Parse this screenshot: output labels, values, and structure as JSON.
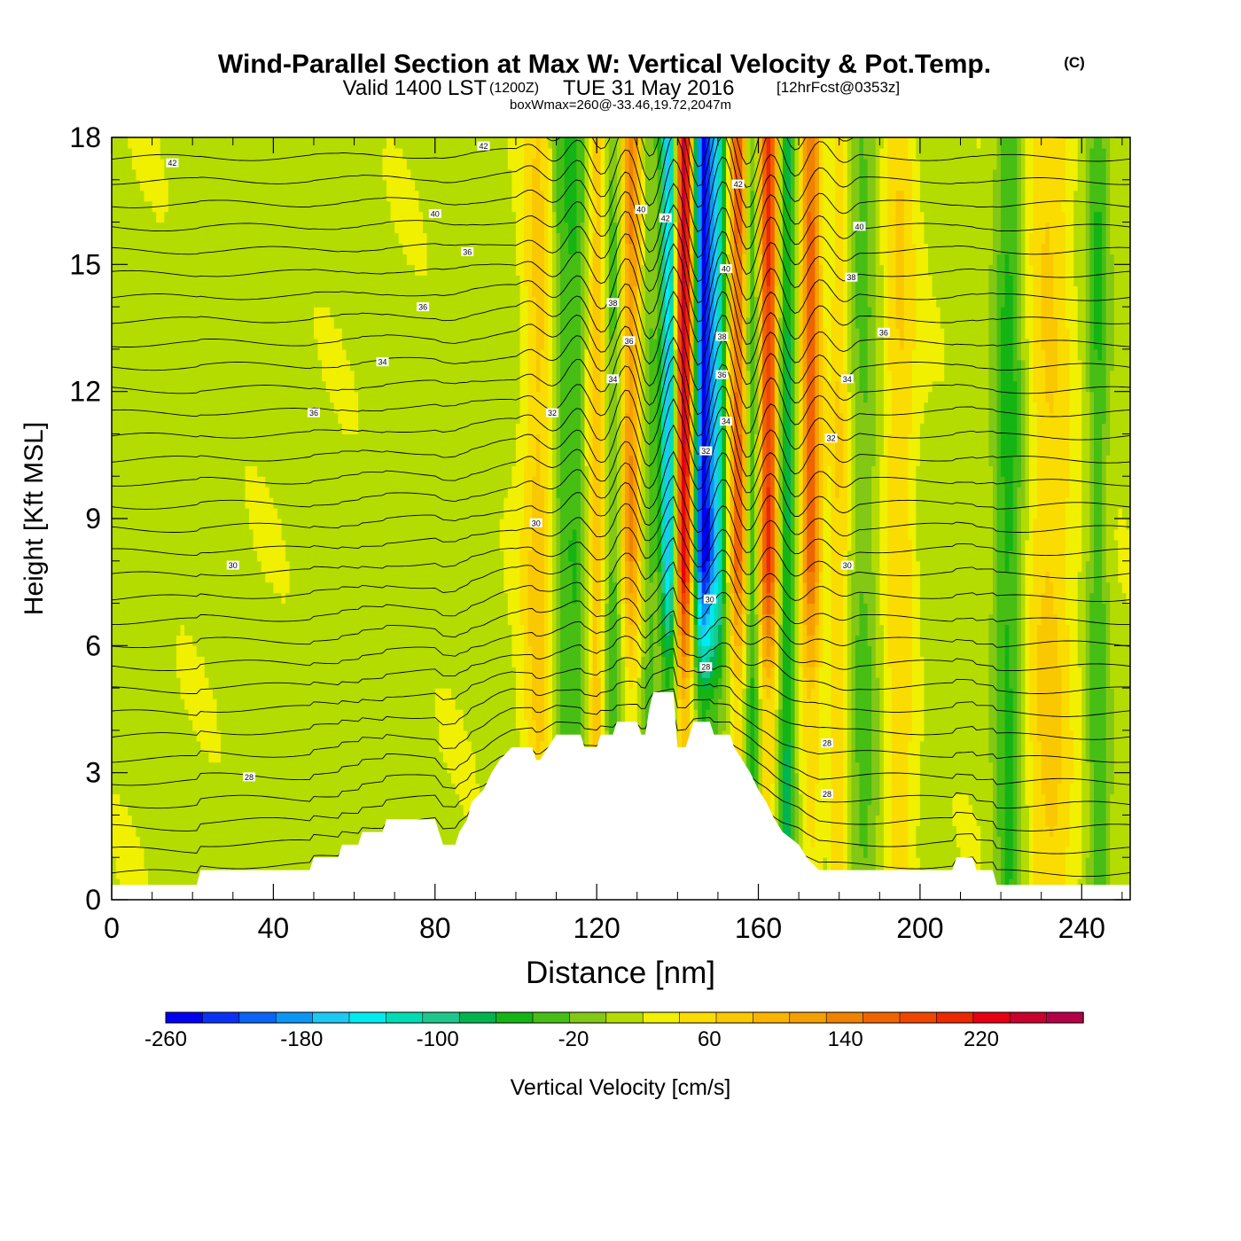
{
  "chart_data": {
    "type": "heatmap",
    "title": "Wind-Parallel Section at Max W: Vertical Velocity & Pot.Temp.",
    "title_mark": "(C)",
    "subtitle": {
      "valid_prefix": "Valid 1400 LST",
      "utc": "(1200Z)",
      "date": "TUE 31 May 2016",
      "forecast": "[12hrFcst@0353z]"
    },
    "box_info": "boxWmax=260@-33.46,19.72,2047m",
    "xlabel": "Distance [nm]",
    "ylabel": "Height [Kft MSL]",
    "xlim": [
      0,
      252
    ],
    "ylim": [
      0,
      18
    ],
    "xticks": [
      0,
      40,
      80,
      120,
      160,
      200,
      240
    ],
    "yticks": [
      0,
      3,
      6,
      9,
      12,
      15,
      18
    ],
    "colorbar": {
      "label": "Vertical Velocity [cm/s]",
      "min": -260,
      "max": 280,
      "step": 20,
      "ticks": [
        -260,
        -180,
        -100,
        -20,
        60,
        140,
        220
      ],
      "colors": [
        "#0000f0",
        "#0a32f5",
        "#0a64f5",
        "#0a96f5",
        "#1ec8f5",
        "#00eaf0",
        "#00dcb4",
        "#1ec88c",
        "#00b450",
        "#14b414",
        "#46be14",
        "#82c814",
        "#b4dc00",
        "#f0f000",
        "#fadc00",
        "#fac800",
        "#fab400",
        "#f5a000",
        "#f08200",
        "#f06400",
        "#f04600",
        "#eb2800",
        "#e60014",
        "#c8002d",
        "#b40046"
      ]
    },
    "terrain_profile_kft": [
      [
        0,
        0.35
      ],
      [
        21,
        0.35
      ],
      [
        22,
        0.7
      ],
      [
        49,
        0.7
      ],
      [
        50,
        1.0
      ],
      [
        56,
        1.0
      ],
      [
        57,
        1.3
      ],
      [
        61,
        1.3
      ],
      [
        62,
        1.6
      ],
      [
        67,
        1.6
      ],
      [
        68,
        1.9
      ],
      [
        80,
        1.9
      ],
      [
        81,
        1.6
      ],
      [
        82,
        1.3
      ],
      [
        85,
        1.3
      ],
      [
        86,
        1.6
      ],
      [
        88,
        1.9
      ],
      [
        89,
        2.3
      ],
      [
        92,
        2.6
      ],
      [
        94,
        3.0
      ],
      [
        96,
        3.3
      ],
      [
        99,
        3.6
      ],
      [
        104,
        3.6
      ],
      [
        105,
        3.3
      ],
      [
        106,
        3.3
      ],
      [
        108,
        3.6
      ],
      [
        110,
        3.9
      ],
      [
        116,
        3.9
      ],
      [
        117,
        3.6
      ],
      [
        120,
        3.6
      ],
      [
        121,
        3.9
      ],
      [
        124,
        3.9
      ],
      [
        125,
        4.2
      ],
      [
        130,
        4.2
      ],
      [
        131,
        3.9
      ],
      [
        132,
        3.9
      ],
      [
        133,
        4.5
      ],
      [
        134,
        4.9
      ],
      [
        139,
        4.9
      ],
      [
        140,
        3.6
      ],
      [
        142,
        3.6
      ],
      [
        143,
        3.9
      ],
      [
        144,
        4.2
      ],
      [
        148,
        4.2
      ],
      [
        149,
        3.9
      ],
      [
        153,
        3.9
      ],
      [
        154,
        3.6
      ],
      [
        156,
        3.3
      ],
      [
        158,
        3.0
      ],
      [
        160,
        2.6
      ],
      [
        162,
        2.3
      ],
      [
        164,
        1.9
      ],
      [
        166,
        1.6
      ],
      [
        170,
        1.3
      ],
      [
        172,
        1.0
      ],
      [
        175,
        0.7
      ],
      [
        208,
        0.7
      ],
      [
        209,
        1.0
      ],
      [
        213,
        1.0
      ],
      [
        214,
        0.7
      ],
      [
        218,
        0.7
      ],
      [
        219,
        0.35
      ],
      [
        252,
        0.35
      ]
    ],
    "w_bands": [
      {
        "x": 106,
        "w": 4.5,
        "amp": 55
      },
      {
        "x": 111,
        "w": 3.0,
        "amp": -50
      },
      {
        "x": 115,
        "w": 2.5,
        "amp": -40
      },
      {
        "x": 120,
        "w": 2.2,
        "amp": 60
      },
      {
        "x": 124,
        "w": 2.0,
        "amp": -40
      },
      {
        "x": 128.5,
        "w": 2.4,
        "amp": 105
      },
      {
        "x": 133,
        "w": 2.0,
        "amp": -35
      },
      {
        "x": 138,
        "w": 2.2,
        "amp": -180
      },
      {
        "x": 141.5,
        "w": 2.4,
        "amp": 230
      },
      {
        "x": 146.5,
        "w": 2.4,
        "amp": -240
      },
      {
        "x": 150,
        "w": 2.0,
        "amp": -120
      },
      {
        "x": 155,
        "w": 2.2,
        "amp": 140
      },
      {
        "x": 158.5,
        "w": 1.8,
        "amp": -60
      },
      {
        "x": 162.5,
        "w": 2.4,
        "amp": 170
      },
      {
        "x": 167,
        "w": 2.0,
        "amp": -80
      },
      {
        "x": 173,
        "w": 2.5,
        "amp": 140
      },
      {
        "x": 180,
        "w": 2.5,
        "amp": 45
      },
      {
        "x": 186,
        "w": 3.5,
        "amp": -35
      },
      {
        "x": 195,
        "w": 4.0,
        "amp": 45
      },
      {
        "x": 222,
        "w": 3.5,
        "amp": -60
      },
      {
        "x": 232,
        "w": 6.0,
        "amp": 50
      },
      {
        "x": 244,
        "w": 2.5,
        "amp": -50
      }
    ],
    "theta_labels": [
      {
        "text": "42",
        "x": 15,
        "y": 17.4
      },
      {
        "text": "42",
        "x": 92,
        "y": 17.8
      },
      {
        "text": "40",
        "x": 80,
        "y": 16.2
      },
      {
        "text": "36",
        "x": 88,
        "y": 15.3
      },
      {
        "text": "36",
        "x": 77,
        "y": 14.0
      },
      {
        "text": "34",
        "x": 67,
        "y": 12.7
      },
      {
        "text": "36",
        "x": 50,
        "y": 11.5
      },
      {
        "text": "30",
        "x": 30,
        "y": 7.9
      },
      {
        "text": "28",
        "x": 34,
        "y": 2.9
      },
      {
        "text": "30",
        "x": 105,
        "y": 8.9
      },
      {
        "text": "40",
        "x": 131,
        "y": 16.3
      },
      {
        "text": "38",
        "x": 124,
        "y": 14.1
      },
      {
        "text": "36",
        "x": 128,
        "y": 13.2
      },
      {
        "text": "34",
        "x": 124,
        "y": 12.3
      },
      {
        "text": "32",
        "x": 109,
        "y": 11.5
      },
      {
        "text": "42",
        "x": 137,
        "y": 16.1
      },
      {
        "text": "42",
        "x": 155,
        "y": 16.9
      },
      {
        "text": "40",
        "x": 152,
        "y": 14.9
      },
      {
        "text": "38",
        "x": 151,
        "y": 13.3
      },
      {
        "text": "36",
        "x": 151,
        "y": 12.4
      },
      {
        "text": "34",
        "x": 152,
        "y": 11.3
      },
      {
        "text": "32",
        "x": 147,
        "y": 10.6
      },
      {
        "text": "30",
        "x": 148,
        "y": 7.1
      },
      {
        "text": "28",
        "x": 147,
        "y": 5.5
      },
      {
        "text": "40",
        "x": 185,
        "y": 15.9
      },
      {
        "text": "38",
        "x": 183,
        "y": 14.7
      },
      {
        "text": "36",
        "x": 191,
        "y": 13.4
      },
      {
        "text": "34",
        "x": 182,
        "y": 12.3
      },
      {
        "text": "32",
        "x": 178,
        "y": 10.9
      },
      {
        "text": "30",
        "x": 182,
        "y": 7.9
      },
      {
        "text": "28",
        "x": 177,
        "y": 3.7
      },
      {
        "text": "28",
        "x": 177,
        "y": 2.5
      }
    ]
  }
}
